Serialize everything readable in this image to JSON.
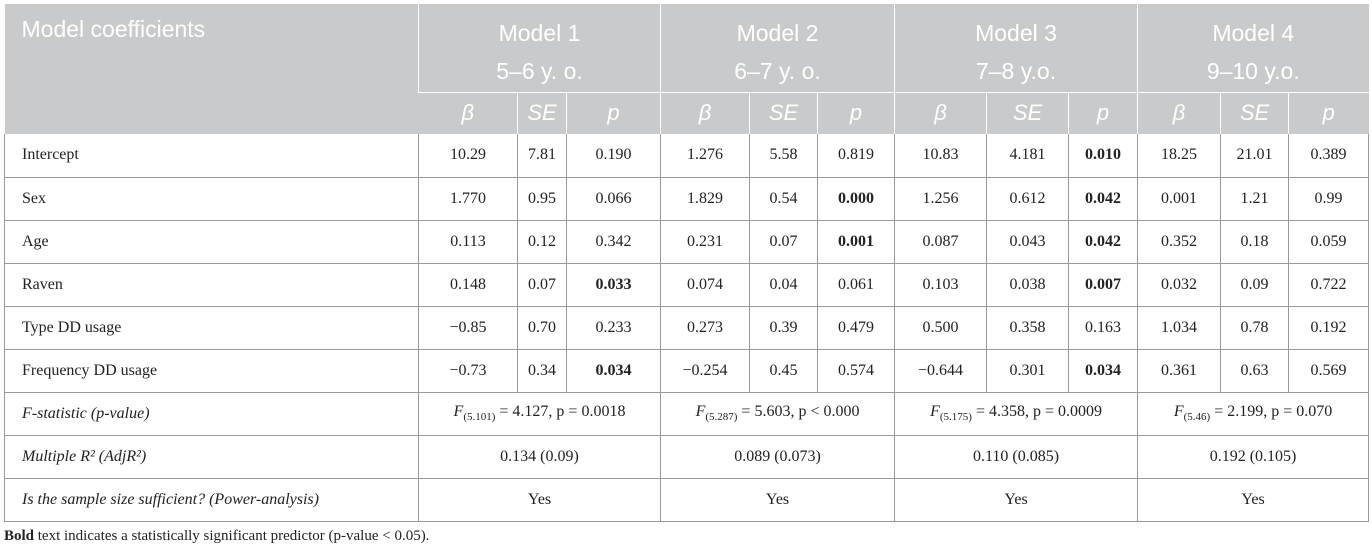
{
  "table": {
    "header_title": "Model coefficients",
    "models": [
      {
        "name": "Model 1",
        "age": "5–6 y. o."
      },
      {
        "name": "Model 2",
        "age": "6–7 y. o."
      },
      {
        "name": "Model 3",
        "age": "7–8 y.o."
      },
      {
        "name": "Model 4",
        "age": "9–10 y.o."
      }
    ],
    "sub_headers": {
      "beta": "β",
      "se": "SE",
      "p": "p"
    },
    "rows": [
      {
        "label": "Intercept",
        "cells": [
          {
            "v": "10.29",
            "b": false
          },
          {
            "v": "7.81",
            "b": false
          },
          {
            "v": "0.190",
            "b": false
          },
          {
            "v": "1.276",
            "b": false
          },
          {
            "v": "5.58",
            "b": false
          },
          {
            "v": "0.819",
            "b": false
          },
          {
            "v": "10.83",
            "b": false
          },
          {
            "v": "4.181",
            "b": false
          },
          {
            "v": "0.010",
            "b": true
          },
          {
            "v": "18.25",
            "b": false
          },
          {
            "v": "21.01",
            "b": false
          },
          {
            "v": "0.389",
            "b": false
          }
        ]
      },
      {
        "label": "Sex",
        "cells": [
          {
            "v": "1.770",
            "b": false
          },
          {
            "v": "0.95",
            "b": false
          },
          {
            "v": "0.066",
            "b": false
          },
          {
            "v": "1.829",
            "b": false
          },
          {
            "v": "0.54",
            "b": false
          },
          {
            "v": "0.000",
            "b": true
          },
          {
            "v": "1.256",
            "b": false
          },
          {
            "v": "0.612",
            "b": false
          },
          {
            "v": "0.042",
            "b": true
          },
          {
            "v": "0.001",
            "b": false
          },
          {
            "v": "1.21",
            "b": false
          },
          {
            "v": "0.99",
            "b": false
          }
        ]
      },
      {
        "label": "Age",
        "cells": [
          {
            "v": "0.113",
            "b": false
          },
          {
            "v": "0.12",
            "b": false
          },
          {
            "v": "0.342",
            "b": false
          },
          {
            "v": "0.231",
            "b": false
          },
          {
            "v": "0.07",
            "b": false
          },
          {
            "v": "0.001",
            "b": true
          },
          {
            "v": "0.087",
            "b": false
          },
          {
            "v": "0.043",
            "b": false
          },
          {
            "v": "0.042",
            "b": true
          },
          {
            "v": "0.352",
            "b": false
          },
          {
            "v": "0.18",
            "b": false
          },
          {
            "v": "0.059",
            "b": false
          }
        ]
      },
      {
        "label": "Raven",
        "cells": [
          {
            "v": "0.148",
            "b": false
          },
          {
            "v": "0.07",
            "b": false
          },
          {
            "v": "0.033",
            "b": true
          },
          {
            "v": "0.074",
            "b": false
          },
          {
            "v": "0.04",
            "b": false
          },
          {
            "v": "0.061",
            "b": false
          },
          {
            "v": "0.103",
            "b": false
          },
          {
            "v": "0.038",
            "b": false
          },
          {
            "v": "0.007",
            "b": true
          },
          {
            "v": "0.032",
            "b": false
          },
          {
            "v": "0.09",
            "b": false
          },
          {
            "v": "0.722",
            "b": false
          }
        ]
      },
      {
        "label": "Type DD usage",
        "cells": [
          {
            "v": "−0.85",
            "b": false
          },
          {
            "v": "0.70",
            "b": false
          },
          {
            "v": "0.233",
            "b": false
          },
          {
            "v": "0.273",
            "b": false
          },
          {
            "v": "0.39",
            "b": false
          },
          {
            "v": "0.479",
            "b": false
          },
          {
            "v": "0.500",
            "b": false
          },
          {
            "v": "0.358",
            "b": false
          },
          {
            "v": "0.163",
            "b": false
          },
          {
            "v": "1.034",
            "b": false
          },
          {
            "v": "0.78",
            "b": false
          },
          {
            "v": "0.192",
            "b": false
          }
        ]
      },
      {
        "label": "Frequency DD usage",
        "cells": [
          {
            "v": "−0.73",
            "b": false
          },
          {
            "v": "0.34",
            "b": false
          },
          {
            "v": "0.034",
            "b": true
          },
          {
            "v": "−0.254",
            "b": false
          },
          {
            "v": "0.45",
            "b": false
          },
          {
            "v": "0.574",
            "b": false
          },
          {
            "v": "−0.644",
            "b": false
          },
          {
            "v": "0.301",
            "b": false
          },
          {
            "v": "0.034",
            "b": true
          },
          {
            "v": "0.361",
            "b": false
          },
          {
            "v": "0.63",
            "b": false
          },
          {
            "v": "0.569",
            "b": false
          }
        ]
      }
    ],
    "fstat": {
      "label": "F-statistic (p-value)",
      "values": [
        {
          "df": "(5.101)",
          "rest": " = 4.127, p = 0.0018"
        },
        {
          "df": "(5.287)",
          "rest": " = 5.603, p < 0.000"
        },
        {
          "df": "(5.175)",
          "rest": " = 4.358, p = 0.0009"
        },
        {
          "df": "(5.46)",
          "rest": " = 2.199, p = 0.070"
        }
      ]
    },
    "r2": {
      "label": "Multiple R² (AdjR²)",
      "values": [
        "0.134 (0.09)",
        "0.089 (0.073)",
        "0.110 (0.085)",
        "0.192 (0.105)"
      ]
    },
    "sample": {
      "label": "Is the sample size sufficient? (Power-analysis)",
      "values": [
        "Yes",
        "Yes",
        "Yes",
        "Yes"
      ]
    }
  },
  "footnote": {
    "bold_part": "Bold",
    "rest": " text indicates a statistically significant predictor (p-value < 0.05)."
  }
}
